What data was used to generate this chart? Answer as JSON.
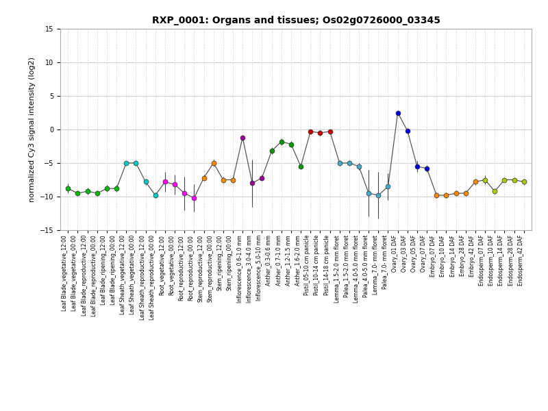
{
  "title": "RXP_0001: Organs and tissues; Os02g0726000_03345",
  "ylabel": "normalized Cy3 signal intensity (log2)",
  "ylim": [
    -15,
    15
  ],
  "yticks": [
    -15,
    -10,
    -5,
    0,
    5,
    10,
    15
  ],
  "labels": [
    "Leaf Blade_vegetative_12:00",
    "Leaf Blade_vegetative_00:00",
    "Leaf Blade_reproductive_12:00",
    "Leaf Blade_reproductive_00:00",
    "Leaf Blade_ripening_12:00",
    "Leaf Blade_ripening_00:00",
    "Leaf Sheath_vegetative_12:00",
    "Leaf Sheath_vegetative_00:00",
    "Leaf Sheath_reproductive_12:00",
    "Leaf Sheath_reproductive_00:00",
    "Root_vegetative_12:00",
    "Root_vegetative_00:00",
    "Root_reproductive_12:00",
    "Root_reproductive_00:00",
    "Stem_reproductive_12:00",
    "Stem_reproductive_00:00",
    "Stem_ripening_12:00",
    "Stem_ripening_00:00",
    "Inflorescence_0.6-1.0 mm",
    "Inflorescence_3.0-4.0 mm",
    "Inflorescence_5.0-10 mm",
    "Anther_0.3-0.6 mm",
    "Anther_0.7-1.0 mm",
    "Anther_1.2-1.5 mm",
    "Anther_1.6-2.0 mm",
    "Pistil_05-10 cm panicle",
    "Pistil_10-14 cm panicle",
    "Pistil_14-18 cm panicle",
    "Lemma_1.5-2.0 mm floret",
    "Palea_1.5-2.0 mm floret",
    "Lemma_4.0-5.0 mm floret",
    "Palea_4.0-5.0 mm floret",
    "Lemma_7.0- mm floret",
    "Palea_7.0- mm floret",
    "Ovary_01 DAF",
    "Ovary_03 DAF",
    "Ovary_05 DAF",
    "Ovary_07 DAF",
    "Embryo_07 DAF",
    "Embryo_10 DAF",
    "Embryo_14 DAF",
    "Embryo_28 DAF",
    "Embryo_42 DAF",
    "Endosperm_07 DAF",
    "Endosperm_10 DAF",
    "Endosperm_14 DAF",
    "Endosperm_28 DAF",
    "Endosperm_42 DAF"
  ],
  "values": [
    -8.8,
    -9.5,
    -9.2,
    -9.5,
    -8.8,
    -8.8,
    -5.0,
    -5.0,
    -7.8,
    -9.8,
    -7.8,
    -8.2,
    -9.5,
    -10.2,
    -7.2,
    -5.0,
    -7.5,
    -7.5,
    -1.2,
    -8.0,
    -7.2,
    -3.2,
    -1.8,
    -2.2,
    -5.5,
    -0.3,
    -0.5,
    -0.3,
    -5.0,
    -5.0,
    -5.5,
    -9.5,
    -9.8,
    -8.5,
    2.5,
    -0.2,
    -5.5,
    -5.8,
    -9.8,
    -9.8,
    -9.5,
    -9.5,
    -7.8,
    -7.5,
    -9.2,
    -7.5,
    -7.5,
    -7.8
  ],
  "errors": [
    0.7,
    0.4,
    0.5,
    0.4,
    0.5,
    0.5,
    0.3,
    0.4,
    0.5,
    0.4,
    1.5,
    1.5,
    2.5,
    2.0,
    0.5,
    0.5,
    0.5,
    0.5,
    0.4,
    3.5,
    0.5,
    0.5,
    0.5,
    0.5,
    0.4,
    0.3,
    0.4,
    0.3,
    0.4,
    0.4,
    0.5,
    3.5,
    3.5,
    2.0,
    0.4,
    0.4,
    0.8,
    0.5,
    0.4,
    0.4,
    0.4,
    0.4,
    0.5,
    0.7,
    0.4,
    0.4,
    0.4,
    0.5
  ],
  "colors": [
    "#00bb00",
    "#00bb00",
    "#00bb00",
    "#00bb00",
    "#00bb00",
    "#00bb00",
    "#00cccc",
    "#00cccc",
    "#00cccc",
    "#00cccc",
    "#ff00ff",
    "#ff00ff",
    "#ff00ff",
    "#ff00ff",
    "#ff8800",
    "#ff8800",
    "#ff8800",
    "#ff8800",
    "#990099",
    "#990099",
    "#990099",
    "#009900",
    "#009900",
    "#009900",
    "#009900",
    "#cc0000",
    "#cc0000",
    "#cc0000",
    "#44aacc",
    "#44aacc",
    "#44aacc",
    "#44aacc",
    "#44aacc",
    "#44aacc",
    "#0000dd",
    "#0000dd",
    "#0000dd",
    "#0000dd",
    "#ff8800",
    "#ff8800",
    "#ff8800",
    "#ff8800",
    "#ff8800",
    "#aacc00",
    "#aacc00",
    "#aacc00",
    "#aacc00",
    "#aacc00"
  ],
  "bg_color": "#ffffff",
  "grid_h_color": "#d0d0d0",
  "grid_v_color": "#cccccc"
}
